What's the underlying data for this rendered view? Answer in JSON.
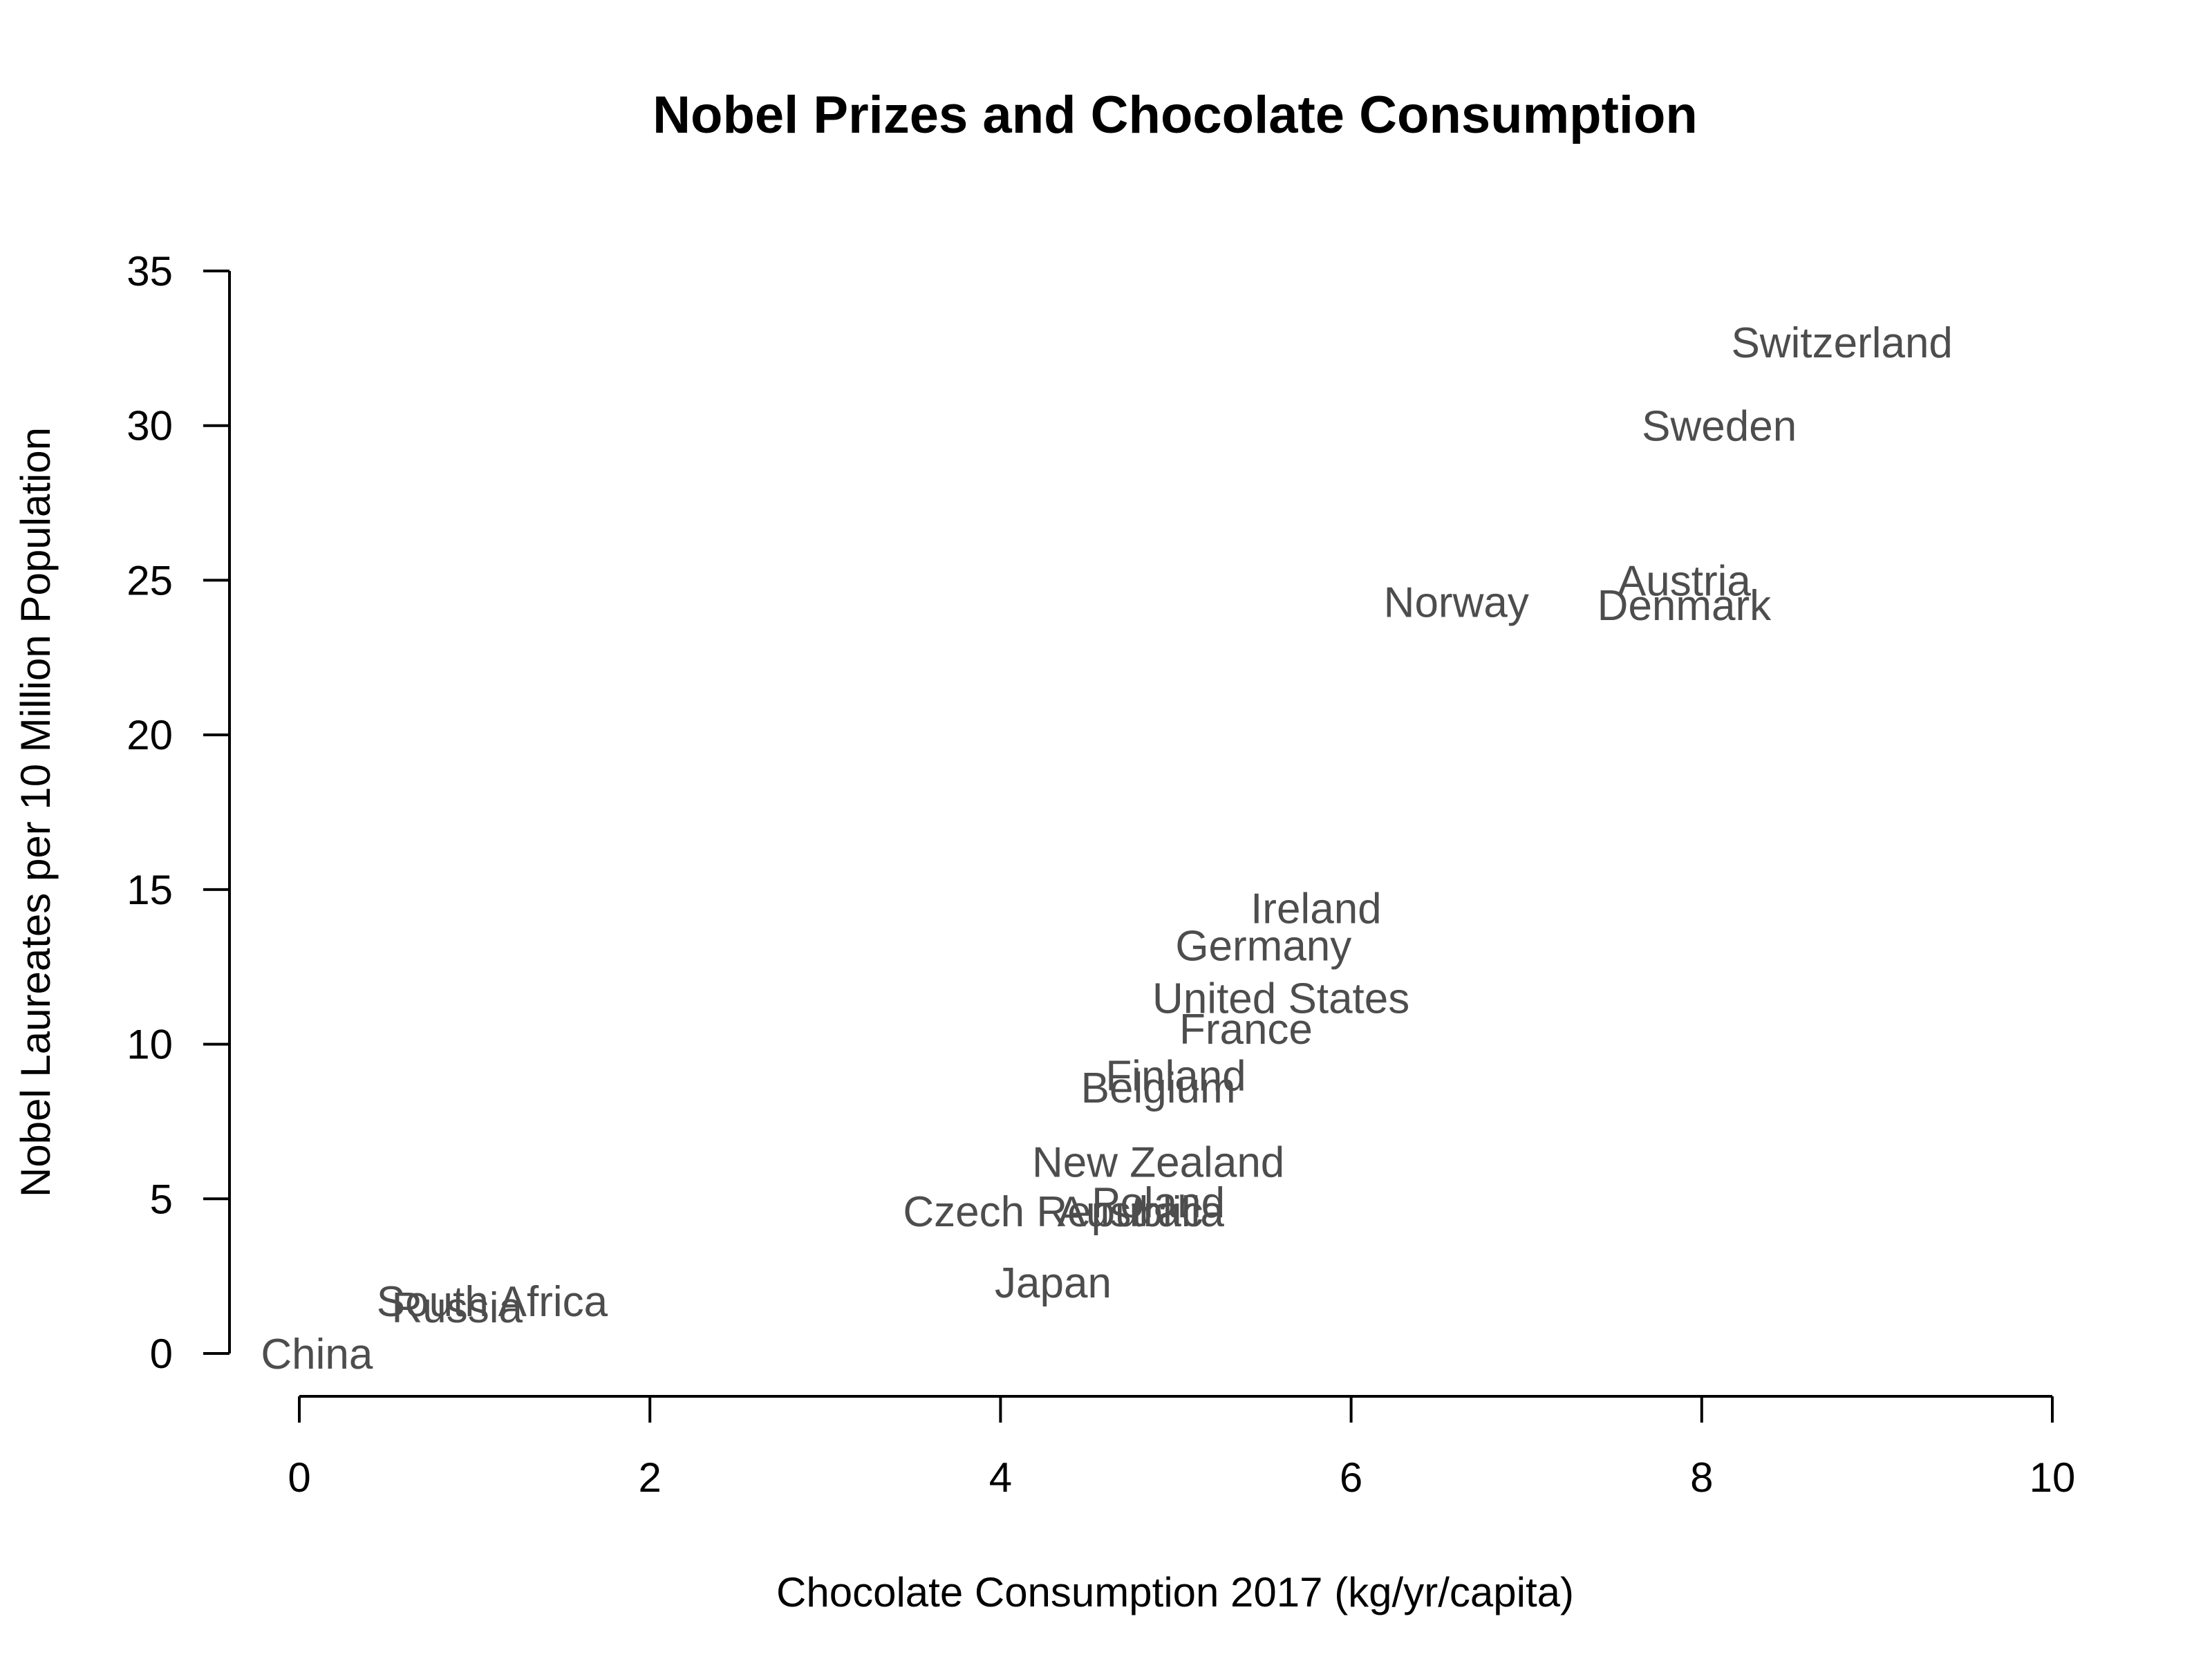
{
  "chart_data": {
    "type": "scatter",
    "title": "Nobel Prizes and Chocolate Consumption",
    "xlabel": "Chocolate Consumption 2017 (kg/yr/capita)",
    "ylabel": "Nobel Laureates per 10 Million Population",
    "xlim": [
      0,
      10
    ],
    "ylim": [
      0,
      35
    ],
    "x_ticks": [
      0,
      2,
      4,
      6,
      8,
      10
    ],
    "y_ticks": [
      0,
      5,
      10,
      15,
      20,
      25,
      30,
      35
    ],
    "grid": false,
    "label_color": "#4d4d4d",
    "points": [
      {
        "label": "Switzerland",
        "x": 8.8,
        "y": 32.7
      },
      {
        "label": "Sweden",
        "x": 8.1,
        "y": 30.0
      },
      {
        "label": "Austria",
        "x": 7.9,
        "y": 25.0
      },
      {
        "label": "Denmark",
        "x": 7.9,
        "y": 24.2
      },
      {
        "label": "Norway",
        "x": 6.6,
        "y": 24.3
      },
      {
        "label": "Ireland",
        "x": 5.8,
        "y": 14.4
      },
      {
        "label": "Germany",
        "x": 5.5,
        "y": 13.2
      },
      {
        "label": "United States",
        "x": 5.6,
        "y": 11.5
      },
      {
        "label": "France",
        "x": 5.4,
        "y": 10.5
      },
      {
        "label": "Finland",
        "x": 5.0,
        "y": 9.0
      },
      {
        "label": "Belgium",
        "x": 4.9,
        "y": 8.6
      },
      {
        "label": "New Zealand",
        "x": 4.9,
        "y": 6.2
      },
      {
        "label": "Poland",
        "x": 4.9,
        "y": 4.9
      },
      {
        "label": "Australia",
        "x": 4.8,
        "y": 4.6
      },
      {
        "label": "Czech Republic",
        "x": 4.3,
        "y": 4.6
      },
      {
        "label": "Japan",
        "x": 4.3,
        "y": 2.3
      },
      {
        "label": "South Africa",
        "x": 1.1,
        "y": 1.7
      },
      {
        "label": "Russia",
        "x": 0.9,
        "y": 1.5
      },
      {
        "label": "China",
        "x": 0.1,
        "y": 0.0
      }
    ]
  }
}
